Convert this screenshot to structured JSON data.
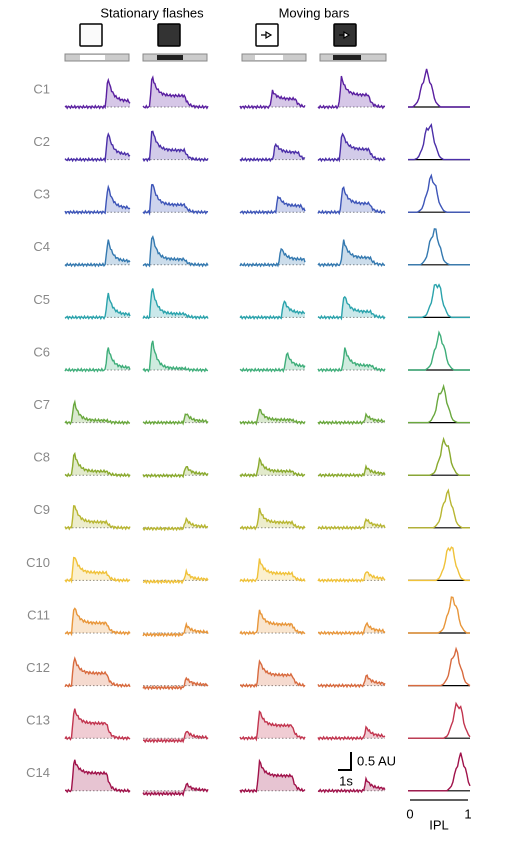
{
  "header": {
    "stationary": "Stationary flashes",
    "moving": "Moving bars"
  },
  "rows": [
    "C1",
    "C2",
    "C3",
    "C4",
    "C5",
    "C6",
    "C7",
    "C8",
    "C9",
    "C10",
    "C11",
    "C12",
    "C13",
    "C14"
  ],
  "scale": {
    "amplitude": "0.5 AU",
    "time": "1s"
  },
  "ipl_axis": {
    "start": "0",
    "end": "1",
    "label": "IPL"
  }
}
